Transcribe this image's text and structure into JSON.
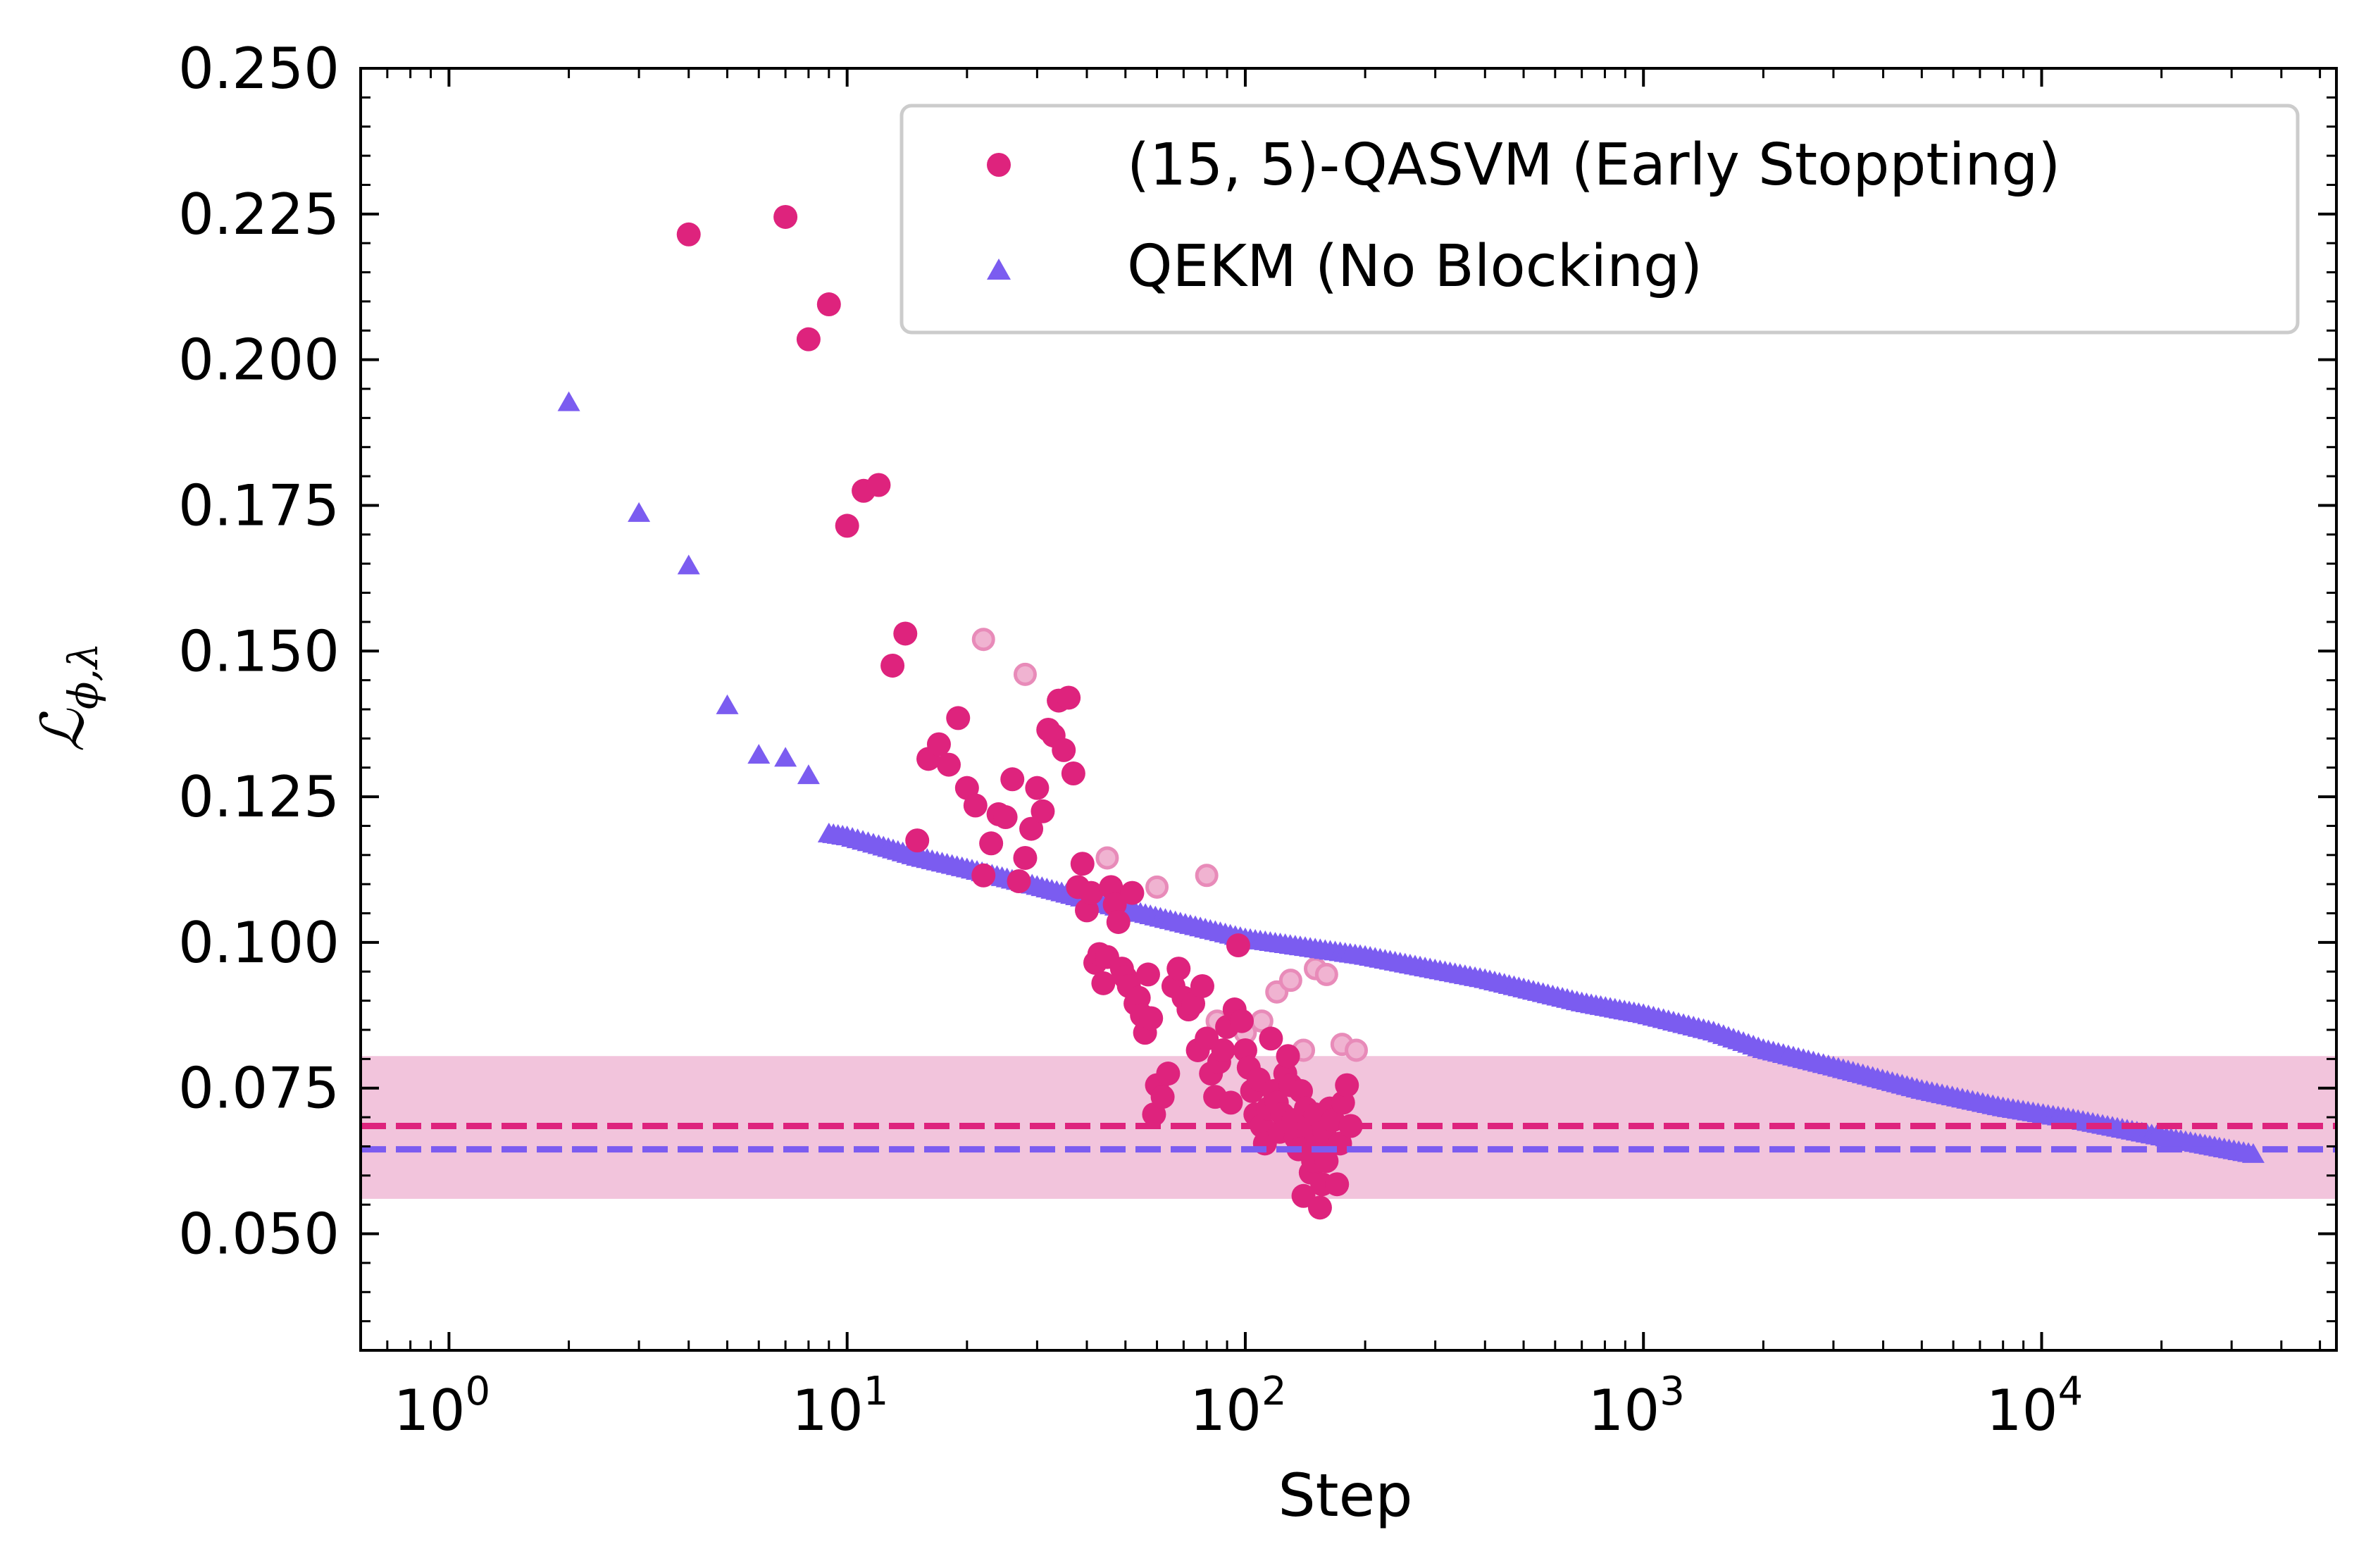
{
  "chart_data": {
    "type": "scatter",
    "title": "",
    "xlabel": "Step",
    "ylabel": "ℒ_{ϕ,λ}",
    "ylabel_main": "ℒ",
    "ylabel_sub": "ϕ,λ",
    "xscale": "log",
    "xlim": [
      0.6,
      55000
    ],
    "ylim": [
      0.03,
      0.25
    ],
    "grid": false,
    "legend_position": "top-right",
    "x_ticks": [
      {
        "value": 1,
        "base": "10",
        "exp": "0"
      },
      {
        "value": 10,
        "base": "10",
        "exp": "1"
      },
      {
        "value": 100,
        "base": "10",
        "exp": "2"
      },
      {
        "value": 1000,
        "base": "10",
        "exp": "3"
      },
      {
        "value": 10000,
        "base": "10",
        "exp": "4"
      }
    ],
    "y_ticks": [
      {
        "value": 0.05,
        "label": "0.050"
      },
      {
        "value": 0.075,
        "label": "0.075"
      },
      {
        "value": 0.1,
        "label": "0.100"
      },
      {
        "value": 0.125,
        "label": "0.125"
      },
      {
        "value": 0.15,
        "label": "0.150"
      },
      {
        "value": 0.175,
        "label": "0.175"
      },
      {
        "value": 0.2,
        "label": "0.200"
      },
      {
        "value": 0.225,
        "label": "0.225"
      },
      {
        "value": 0.25,
        "label": "0.250"
      }
    ],
    "colors": {
      "qasvm": "#de237d",
      "qekm": "#7b5cf0",
      "band": "#f2c4dc",
      "faded": "#f0b3d1"
    },
    "band": {
      "y0": 0.056,
      "y1": 0.0805
    },
    "hlines": [
      {
        "y": 0.0685,
        "color": "#de237d"
      },
      {
        "y": 0.0645,
        "color": "#7b5cf0"
      }
    ],
    "series": [
      {
        "name": "(15, 5)-QASVM (Early Stoppting)",
        "marker": "circle",
        "points": [
          [
            4,
            0.2215
          ],
          [
            7,
            0.2245
          ],
          [
            8,
            0.2035
          ],
          [
            9,
            0.2095
          ],
          [
            10,
            0.1715
          ],
          [
            11,
            0.1775
          ],
          [
            12,
            0.1785
          ],
          [
            13,
            0.1475
          ],
          [
            14,
            0.153
          ],
          [
            15,
            0.1175
          ],
          [
            16,
            0.1315
          ],
          [
            17,
            0.134
          ],
          [
            18,
            0.1305
          ],
          [
            19,
            0.1385
          ],
          [
            20,
            0.1265
          ],
          [
            21,
            0.1235
          ],
          [
            22,
            0.1115
          ],
          [
            23,
            0.117
          ],
          [
            24,
            0.122
          ],
          [
            25,
            0.1215
          ],
          [
            26,
            0.128
          ],
          [
            27,
            0.1105
          ],
          [
            28,
            0.1145
          ],
          [
            29,
            0.1195
          ],
          [
            30,
            0.1265
          ],
          [
            31,
            0.1225
          ],
          [
            32,
            0.1365
          ],
          [
            33,
            0.1355
          ],
          [
            34,
            0.1415
          ],
          [
            35,
            0.133
          ],
          [
            36,
            0.142
          ],
          [
            37,
            0.129
          ],
          [
            38,
            0.1095
          ],
          [
            39,
            0.1135
          ],
          [
            40,
            0.1055
          ],
          [
            41,
            0.1085
          ],
          [
            42,
            0.0965
          ],
          [
            43,
            0.098
          ],
          [
            44,
            0.093
          ],
          [
            45,
            0.0975
          ],
          [
            46,
            0.1095
          ],
          [
            47,
            0.1065
          ],
          [
            48,
            0.1035
          ],
          [
            49,
            0.0955
          ],
          [
            50,
            0.094
          ],
          [
            51,
            0.0925
          ],
          [
            52,
            0.1085
          ],
          [
            53,
            0.0895
          ],
          [
            54,
            0.0905
          ],
          [
            55,
            0.0875
          ],
          [
            56,
            0.0845
          ],
          [
            57,
            0.0945
          ],
          [
            58,
            0.087
          ],
          [
            59,
            0.0705
          ],
          [
            60,
            0.0755
          ],
          [
            62,
            0.0735
          ],
          [
            64,
            0.0775
          ],
          [
            66,
            0.0925
          ],
          [
            68,
            0.0955
          ],
          [
            70,
            0.0905
          ],
          [
            72,
            0.0885
          ],
          [
            74,
            0.0895
          ],
          [
            76,
            0.0815
          ],
          [
            78,
            0.0925
          ],
          [
            80,
            0.0835
          ],
          [
            82,
            0.0775
          ],
          [
            84,
            0.0735
          ],
          [
            86,
            0.0795
          ],
          [
            88,
            0.0815
          ],
          [
            90,
            0.0855
          ],
          [
            92,
            0.0725
          ],
          [
            94,
            0.0885
          ],
          [
            96,
            0.0995
          ],
          [
            98,
            0.0865
          ],
          [
            100,
            0.0815
          ],
          [
            102,
            0.0785
          ],
          [
            104,
            0.0745
          ],
          [
            106,
            0.0705
          ],
          [
            108,
            0.0765
          ],
          [
            110,
            0.0685
          ],
          [
            112,
            0.0655
          ],
          [
            114,
            0.0715
          ],
          [
            116,
            0.0835
          ],
          [
            118,
            0.0745
          ],
          [
            120,
            0.0725
          ],
          [
            122,
            0.0675
          ],
          [
            124,
            0.0705
          ],
          [
            126,
            0.0775
          ],
          [
            128,
            0.0805
          ],
          [
            130,
            0.0755
          ],
          [
            132,
            0.0695
          ],
          [
            134,
            0.0665
          ],
          [
            136,
            0.0645
          ],
          [
            138,
            0.0745
          ],
          [
            140,
            0.0565
          ],
          [
            142,
            0.0715
          ],
          [
            144,
            0.0685
          ],
          [
            146,
            0.0605
          ],
          [
            148,
            0.0625
          ],
          [
            150,
            0.0705
          ],
          [
            152,
            0.0655
          ],
          [
            154,
            0.0545
          ],
          [
            156,
            0.0585
          ],
          [
            158,
            0.0675
          ],
          [
            160,
            0.0625
          ],
          [
            163,
            0.0715
          ],
          [
            166,
            0.0695
          ],
          [
            170,
            0.0585
          ],
          [
            173,
            0.0655
          ],
          [
            176,
            0.0725
          ],
          [
            180,
            0.0755
          ],
          [
            184,
            0.0685
          ]
        ]
      },
      {
        "name": "QEKM (No Blocking)",
        "marker": "triangle",
        "points": [
          [
            2,
            0.1925
          ],
          [
            3,
            0.1735
          ],
          [
            4,
            0.1645
          ],
          [
            5,
            0.1405
          ],
          [
            6,
            0.132
          ],
          [
            7,
            0.1315
          ],
          [
            8,
            0.1285
          ],
          [
            9,
            0.1185
          ],
          [
            10,
            0.118
          ],
          [
            12,
            0.1165
          ],
          [
            15,
            0.1145
          ],
          [
            20,
            0.1125
          ],
          [
            30,
            0.1095
          ],
          [
            50,
            0.1055
          ],
          [
            100,
            0.1005
          ],
          [
            200,
            0.0975
          ],
          [
            400,
            0.0935
          ],
          [
            700,
            0.0895
          ],
          [
            1000,
            0.0875
          ],
          [
            1500,
            0.0845
          ],
          [
            2000,
            0.0815
          ],
          [
            3000,
            0.0785
          ],
          [
            5000,
            0.0745
          ],
          [
            8000,
            0.0715
          ],
          [
            12000,
            0.0695
          ],
          [
            20000,
            0.0665
          ],
          [
            34000,
            0.0635
          ]
        ]
      },
      {
        "name": "",
        "marker": "faded-circle",
        "points": [
          [
            22,
            0.152
          ],
          [
            28,
            0.146
          ],
          [
            45,
            0.1145
          ],
          [
            60,
            0.1095
          ],
          [
            80,
            0.1115
          ],
          [
            85,
            0.0865
          ],
          [
            100,
            0.0845
          ],
          [
            110,
            0.0865
          ],
          [
            120,
            0.0915
          ],
          [
            130,
            0.0935
          ],
          [
            140,
            0.0815
          ],
          [
            150,
            0.0955
          ],
          [
            160,
            0.0945
          ],
          [
            175,
            0.0825
          ],
          [
            190,
            0.0815
          ]
        ]
      }
    ]
  }
}
